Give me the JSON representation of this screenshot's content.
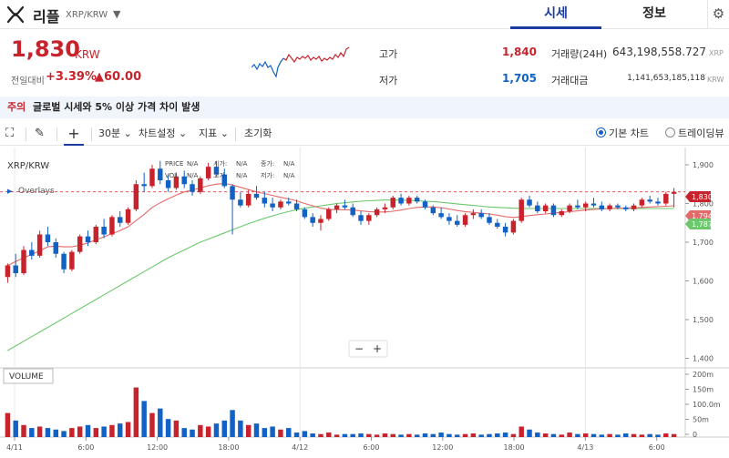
{
  "header": {
    "coin_name": "리플",
    "pair": "XRP/KRW",
    "tabs": [
      "시세",
      "정보"
    ]
  },
  "price": {
    "current": "1,830",
    "unit": "KRW",
    "change_label": "전일대비",
    "change_rate": "+3.39%",
    "change_value": "▲60.00"
  },
  "stats": {
    "high_label": "고가",
    "high": "1,840",
    "low_label": "저가",
    "low": "1,705",
    "volume_label": "거래량(24H)",
    "volume": "643,198,558.727",
    "volume_unit": "XRP",
    "amount_label": "거래대금",
    "amount": "1,141,653,185,118",
    "amount_unit": "KRW"
  },
  "notice": {
    "tag": "주의",
    "message": "글로벌 시세와 5% 이상 가격 차이 발생"
  },
  "toolbar": {
    "interval": "30분",
    "chart_settings": "차트설정",
    "indicators": "지표",
    "reset": "초기화",
    "view_basic": "기본 차트",
    "view_trading": "트레이딩뷰"
  },
  "colors": {
    "up": "#c8232c",
    "down": "#1261c4",
    "ma_short": "#e46a6a",
    "ma_long": "#6cc86c",
    "accent": "#1a3ca0"
  },
  "chart_data": {
    "type": "candlestick",
    "symbol_label": "XRP/KRW",
    "overlays_label": "Overlays",
    "info_labels": [
      "PRICE",
      "N/A",
      "시가:",
      "N/A",
      "종가:",
      "N/A",
      "VOL",
      "N/A",
      "고가:",
      "N/A",
      "저가:",
      "N/A"
    ],
    "x_ticks": [
      "4/11",
      "6:00",
      "12:00",
      "18:00",
      "4/12",
      "6:00",
      "12:00",
      "18:00",
      "4/13",
      "6:00"
    ],
    "y_ticks": [
      "1,900",
      "1,800",
      "1,700",
      "1,600",
      "1,500",
      "1,400"
    ],
    "ylim": [
      1380,
      1940
    ],
    "price_tags": [
      "1,830",
      "1,794",
      "1,787"
    ],
    "volume_label": "VOLUME",
    "volume_ticks": [
      "200m",
      "150m",
      "100.0m",
      "50m",
      "0"
    ],
    "zoom_controls": [
      "−",
      "+"
    ],
    "candles": [
      [
        1610,
        1645,
        1595,
        1640
      ],
      [
        1640,
        1670,
        1610,
        1620
      ],
      [
        1620,
        1690,
        1615,
        1680
      ],
      [
        1680,
        1700,
        1655,
        1665
      ],
      [
        1665,
        1730,
        1660,
        1720
      ],
      [
        1720,
        1740,
        1690,
        1700
      ],
      [
        1700,
        1710,
        1660,
        1670
      ],
      [
        1670,
        1675,
        1620,
        1630
      ],
      [
        1630,
        1680,
        1625,
        1675
      ],
      [
        1675,
        1720,
        1670,
        1715
      ],
      [
        1715,
        1730,
        1690,
        1700
      ],
      [
        1700,
        1745,
        1695,
        1740
      ],
      [
        1740,
        1760,
        1710,
        1720
      ],
      [
        1720,
        1770,
        1715,
        1765
      ],
      [
        1765,
        1780,
        1740,
        1750
      ],
      [
        1750,
        1790,
        1745,
        1785
      ],
      [
        1785,
        1860,
        1780,
        1850
      ],
      [
        1850,
        1880,
        1830,
        1845
      ],
      [
        1845,
        1900,
        1840,
        1890
      ],
      [
        1890,
        1910,
        1850,
        1860
      ],
      [
        1860,
        1875,
        1830,
        1840
      ],
      [
        1840,
        1880,
        1835,
        1870
      ],
      [
        1870,
        1885,
        1840,
        1850
      ],
      [
        1850,
        1860,
        1820,
        1830
      ],
      [
        1830,
        1870,
        1825,
        1865
      ],
      [
        1865,
        1905,
        1860,
        1895
      ],
      [
        1895,
        1910,
        1870,
        1875
      ],
      [
        1875,
        1890,
        1840,
        1845
      ],
      [
        1845,
        1850,
        1720,
        1810
      ],
      [
        1810,
        1830,
        1790,
        1795
      ],
      [
        1795,
        1835,
        1790,
        1825
      ],
      [
        1825,
        1845,
        1810,
        1815
      ],
      [
        1815,
        1830,
        1790,
        1800
      ],
      [
        1800,
        1815,
        1780,
        1790
      ],
      [
        1790,
        1810,
        1785,
        1805
      ],
      [
        1805,
        1815,
        1795,
        1800
      ],
      [
        1800,
        1810,
        1780,
        1785
      ],
      [
        1785,
        1790,
        1760,
        1765
      ],
      [
        1765,
        1775,
        1740,
        1750
      ],
      [
        1750,
        1770,
        1730,
        1760
      ],
      [
        1760,
        1790,
        1755,
        1785
      ],
      [
        1785,
        1800,
        1775,
        1795
      ],
      [
        1795,
        1810,
        1785,
        1790
      ],
      [
        1790,
        1800,
        1765,
        1770
      ],
      [
        1770,
        1780,
        1745,
        1755
      ],
      [
        1755,
        1775,
        1745,
        1770
      ],
      [
        1770,
        1790,
        1765,
        1785
      ],
      [
        1785,
        1800,
        1775,
        1790
      ],
      [
        1790,
        1820,
        1785,
        1815
      ],
      [
        1815,
        1825,
        1795,
        1800
      ],
      [
        1800,
        1820,
        1795,
        1815
      ],
      [
        1815,
        1820,
        1800,
        1805
      ],
      [
        1805,
        1810,
        1785,
        1790
      ],
      [
        1790,
        1795,
        1770,
        1775
      ],
      [
        1775,
        1790,
        1760,
        1765
      ],
      [
        1765,
        1775,
        1745,
        1755
      ],
      [
        1755,
        1770,
        1740,
        1745
      ],
      [
        1745,
        1775,
        1740,
        1770
      ],
      [
        1770,
        1785,
        1760,
        1775
      ],
      [
        1775,
        1785,
        1760,
        1765
      ],
      [
        1765,
        1775,
        1745,
        1750
      ],
      [
        1750,
        1760,
        1735,
        1740
      ],
      [
        1740,
        1750,
        1715,
        1725
      ],
      [
        1725,
        1760,
        1720,
        1755
      ],
      [
        1755,
        1815,
        1750,
        1810
      ],
      [
        1810,
        1820,
        1790,
        1795
      ],
      [
        1795,
        1805,
        1775,
        1780
      ],
      [
        1780,
        1800,
        1775,
        1795
      ],
      [
        1795,
        1800,
        1765,
        1770
      ],
      [
        1770,
        1785,
        1765,
        1780
      ],
      [
        1780,
        1800,
        1775,
        1795
      ],
      [
        1795,
        1810,
        1785,
        1790
      ],
      [
        1790,
        1805,
        1780,
        1800
      ],
      [
        1800,
        1815,
        1790,
        1795
      ],
      [
        1795,
        1805,
        1780,
        1785
      ],
      [
        1785,
        1800,
        1780,
        1795
      ],
      [
        1795,
        1800,
        1785,
        1790
      ],
      [
        1790,
        1795,
        1780,
        1785
      ],
      [
        1785,
        1800,
        1780,
        1795
      ],
      [
        1795,
        1815,
        1790,
        1810
      ],
      [
        1810,
        1820,
        1800,
        1805
      ],
      [
        1805,
        1815,
        1795,
        1800
      ],
      [
        1800,
        1830,
        1795,
        1825
      ],
      [
        1825,
        1840,
        1790,
        1830
      ]
    ],
    "ma_short": [
      1640,
      1650,
      1660,
      1668,
      1678,
      1688,
      1690,
      1688,
      1688,
      1692,
      1698,
      1706,
      1714,
      1722,
      1730,
      1740,
      1756,
      1772,
      1790,
      1802,
      1812,
      1822,
      1830,
      1835,
      1840,
      1846,
      1850,
      1852,
      1848,
      1842,
      1836,
      1830,
      1826,
      1821,
      1816,
      1812,
      1807,
      1800,
      1794,
      1788,
      1785,
      1784,
      1784,
      1783,
      1781,
      1779,
      1778,
      1778,
      1780,
      1783,
      1787,
      1790,
      1791,
      1791,
      1789,
      1786,
      1782,
      1779,
      1777,
      1775,
      1773,
      1770,
      1766,
      1764,
      1766,
      1769,
      1771,
      1773,
      1775,
      1777,
      1779,
      1781,
      1783,
      1785,
      1786,
      1787,
      1788,
      1788,
      1789,
      1790,
      1791,
      1792,
      1793,
      1794
    ],
    "ma_long": [
      1420,
      1432,
      1444,
      1456,
      1468,
      1480,
      1492,
      1504,
      1516,
      1528,
      1540,
      1552,
      1564,
      1576,
      1588,
      1600,
      1612,
      1624,
      1636,
      1648,
      1660,
      1670,
      1680,
      1690,
      1700,
      1708,
      1716,
      1724,
      1732,
      1740,
      1748,
      1755,
      1762,
      1768,
      1774,
      1779,
      1784,
      1788,
      1791,
      1794,
      1797,
      1800,
      1802,
      1804,
      1806,
      1807,
      1808,
      1809,
      1809,
      1809,
      1808,
      1807,
      1806,
      1805,
      1803,
      1801,
      1799,
      1797,
      1795,
      1793,
      1791,
      1790,
      1789,
      1788,
      1787,
      1787,
      1787,
      1787,
      1787,
      1787,
      1787,
      1787,
      1787,
      1787,
      1787,
      1787,
      1787,
      1787,
      1787,
      1787,
      1787,
      1787,
      1787,
      1787
    ],
    "volumes": [
      80,
      55,
      40,
      30,
      35,
      30,
      25,
      20,
      30,
      35,
      40,
      30,
      35,
      40,
      45,
      50,
      165,
      120,
      80,
      95,
      60,
      55,
      30,
      25,
      40,
      35,
      45,
      55,
      90,
      55,
      40,
      45,
      30,
      35,
      25,
      30,
      15,
      20,
      12,
      10,
      15,
      8,
      10,
      10,
      12,
      10,
      8,
      12,
      10,
      8,
      10,
      8,
      12,
      10,
      15,
      10,
      8,
      10,
      12,
      8,
      10,
      12,
      15,
      10,
      35,
      25,
      15,
      12,
      10,
      8,
      15,
      10,
      12,
      10,
      8,
      10,
      8,
      12,
      10,
      8,
      10,
      8,
      12,
      10
    ]
  }
}
